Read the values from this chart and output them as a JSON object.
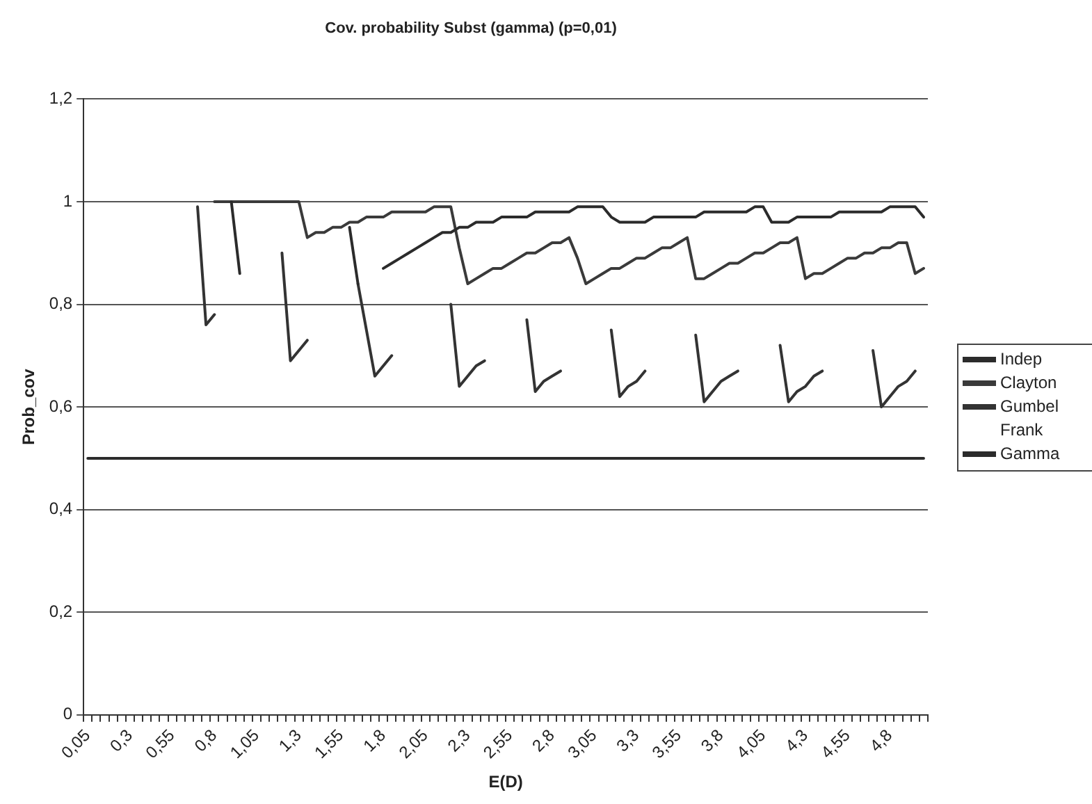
{
  "chart_data": {
    "type": "line",
    "title": "Cov. probability Subst (gamma) (p=0,01)",
    "xlabel": "E(D)",
    "ylabel": "Prob_cov",
    "categories": [
      "0,05",
      null,
      null,
      null,
      null,
      "0,3",
      null,
      null,
      null,
      null,
      "0,55",
      null,
      null,
      null,
      null,
      "0,8",
      null,
      null,
      null,
      null,
      "1,05",
      null,
      null,
      null,
      null,
      "1,3",
      null,
      null,
      null,
      null,
      "1,55",
      null,
      null,
      null,
      null,
      "1,8",
      null,
      null,
      null,
      null,
      "2,05",
      null,
      null,
      null,
      null,
      "2,3",
      null,
      null,
      null,
      null,
      "2,55",
      null,
      null,
      null,
      null,
      "2,8",
      null,
      null,
      null,
      null,
      "3,05",
      null,
      null,
      null,
      null,
      "3,3",
      null,
      null,
      null,
      null,
      "3,55",
      null,
      null,
      null,
      null,
      "3,8",
      null,
      null,
      null,
      null,
      "4,05",
      null,
      null,
      null,
      null,
      "4,3",
      null,
      null,
      null,
      null,
      "4,55",
      null,
      null,
      null,
      null,
      "4,8",
      null,
      null,
      null,
      null
    ],
    "series": [
      {
        "name": "Indep",
        "color": "#2b2b2b",
        "values": [
          null,
          null,
          null,
          null,
          null,
          null,
          null,
          null,
          null,
          null,
          null,
          null,
          null,
          null,
          null,
          null,
          null,
          1,
          0.86,
          null,
          null,
          null,
          null,
          null,
          null,
          null,
          null,
          null,
          null,
          null,
          null,
          0.95,
          0.84,
          null,
          null,
          0.87,
          0.88,
          0.89,
          0.9,
          0.91,
          0.92,
          0.93,
          0.94,
          0.94,
          0.95,
          0.95,
          0.96,
          0.96,
          0.96,
          0.97,
          0.97,
          0.97,
          0.97,
          0.98,
          0.98,
          0.98,
          0.98,
          0.98,
          0.99,
          0.99,
          0.99,
          0.99,
          0.97,
          0.96,
          0.96,
          0.96,
          0.96,
          0.97,
          0.97,
          0.97,
          0.97,
          0.97,
          0.97,
          0.98,
          0.98,
          0.98,
          0.98,
          0.98,
          0.98,
          0.99,
          0.99,
          0.96,
          0.96,
          0.96,
          0.97,
          0.97,
          0.97,
          0.97,
          0.97,
          0.98,
          0.98,
          0.98,
          0.98,
          0.98,
          0.98,
          0.99,
          0.99,
          0.99,
          0.99,
          0.97
        ]
      },
      {
        "name": "Clayton",
        "color": "#3a3a3a",
        "values": [
          null,
          null,
          null,
          null,
          null,
          null,
          null,
          null,
          null,
          null,
          null,
          null,
          null,
          null,
          null,
          1,
          1,
          1,
          1,
          1,
          1,
          1,
          1,
          1,
          1,
          1,
          0.93,
          0.94,
          0.94,
          0.95,
          0.95,
          0.96,
          0.96,
          0.97,
          0.97,
          0.97,
          0.98,
          0.98,
          0.98,
          0.98,
          0.98,
          0.99,
          0.99,
          0.99,
          0.91,
          0.84,
          0.85,
          0.86,
          0.87,
          0.87,
          0.88,
          0.89,
          0.9,
          0.9,
          0.91,
          0.92,
          0.92,
          0.93,
          0.89,
          0.84,
          0.85,
          0.86,
          0.87,
          0.87,
          0.88,
          0.89,
          0.89,
          0.9,
          0.91,
          0.91,
          0.92,
          0.93,
          0.85,
          0.85,
          0.86,
          0.87,
          0.88,
          0.88,
          0.89,
          0.9,
          0.9,
          0.91,
          0.92,
          0.92,
          0.93,
          0.85,
          0.86,
          0.86,
          0.87,
          0.88,
          0.89,
          0.89,
          0.9,
          0.9,
          0.91,
          0.91,
          0.92,
          0.92,
          0.86,
          0.87
        ]
      },
      {
        "name": "Gumbel",
        "color": "#333333",
        "values": [
          null,
          null,
          null,
          null,
          null,
          null,
          null,
          null,
          null,
          null,
          null,
          null,
          null,
          0.99,
          0.76,
          0.78,
          null,
          null,
          null,
          null,
          null,
          null,
          null,
          0.9,
          0.69,
          0.71,
          0.73,
          null,
          null,
          null,
          null,
          null,
          0.84,
          0.75,
          0.66,
          0.68,
          0.7,
          null,
          null,
          null,
          null,
          null,
          null,
          0.8,
          0.64,
          0.66,
          0.68,
          0.69,
          null,
          null,
          null,
          null,
          0.77,
          0.63,
          0.65,
          0.66,
          0.67,
          null,
          null,
          null,
          null,
          null,
          0.75,
          0.62,
          0.64,
          0.65,
          0.67,
          null,
          null,
          null,
          null,
          null,
          0.74,
          0.61,
          0.63,
          0.65,
          0.66,
          0.67,
          null,
          null,
          null,
          null,
          0.72,
          0.61,
          0.63,
          0.64,
          0.66,
          0.67,
          null,
          null,
          null,
          null,
          null,
          0.71,
          0.6,
          0.62,
          0.64,
          0.65,
          0.67,
          null
        ]
      },
      {
        "name": "Frank",
        "values": [
          null,
          null,
          null,
          null,
          null,
          null,
          null,
          null,
          null,
          null,
          null,
          null,
          null,
          null,
          null,
          null,
          null,
          null,
          null,
          null,
          null,
          null,
          null,
          null,
          null,
          null,
          null,
          null,
          null,
          null,
          null,
          null,
          null,
          null,
          null,
          null,
          null,
          null,
          null,
          null,
          null,
          null,
          null,
          null,
          null,
          null,
          null,
          null,
          null,
          null,
          null,
          null,
          null,
          null,
          null,
          null,
          null,
          null,
          null,
          null,
          null,
          null,
          null,
          null,
          null,
          null,
          null,
          null,
          null,
          null,
          null,
          null,
          null,
          null,
          null,
          null,
          null,
          null,
          null,
          null,
          null,
          null,
          null,
          null,
          null,
          null,
          null,
          null,
          null,
          null,
          null,
          null,
          null,
          null,
          null,
          null,
          null,
          null,
          null,
          null
        ]
      },
      {
        "name": "Gamma",
        "color": "#2b2b2b",
        "values": [
          0.5,
          0.5,
          0.5,
          0.5,
          0.5,
          0.5,
          0.5,
          0.5,
          0.5,
          0.5,
          0.5,
          0.5,
          0.5,
          0.5,
          0.5,
          0.5,
          0.5,
          0.5,
          0.5,
          0.5,
          0.5,
          0.5,
          0.5,
          0.5,
          0.5,
          0.5,
          0.5,
          0.5,
          0.5,
          0.5,
          0.5,
          0.5,
          0.5,
          0.5,
          0.5,
          0.5,
          0.5,
          0.5,
          0.5,
          0.5,
          0.5,
          0.5,
          0.5,
          0.5,
          0.5,
          0.5,
          0.5,
          0.5,
          0.5,
          0.5,
          0.5,
          0.5,
          0.5,
          0.5,
          0.5,
          0.5,
          0.5,
          0.5,
          0.5,
          0.5,
          0.5,
          0.5,
          0.5,
          0.5,
          0.5,
          0.5,
          0.5,
          0.5,
          0.5,
          0.5,
          0.5,
          0.5,
          0.5,
          0.5,
          0.5,
          0.5,
          0.5,
          0.5,
          0.5,
          0.5,
          0.5,
          0.5,
          0.5,
          0.5,
          0.5,
          0.5,
          0.5,
          0.5,
          0.5,
          0.5,
          0.5,
          0.5,
          0.5,
          0.5,
          0.5,
          0.5,
          0.5,
          0.5,
          0.5,
          0.5
        ]
      }
    ],
    "ylim": [
      0,
      1.2
    ],
    "yticks": [
      0,
      {
        "value": 0.2,
        "label": "0,2"
      },
      {
        "value": 0.4,
        "label": "0,4"
      },
      {
        "value": 0.6,
        "label": "0,6"
      },
      {
        "value": 0.8,
        "label": "0,8"
      },
      1,
      {
        "value": 1.2,
        "label": "1,2"
      }
    ],
    "grid": "y",
    "legend": "right",
    "marker": "none",
    "line_style": "solid"
  }
}
